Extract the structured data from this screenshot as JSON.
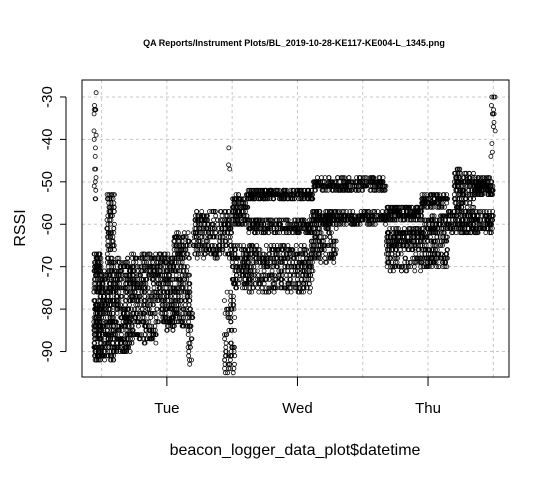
{
  "chart_data": {
    "type": "scatter",
    "title": "QA Reports/Instrument Plots/BL_2019-10-28-KE117-KE004-L_1345.png",
    "xlabel": "beacon_logger_data_plot$datetime",
    "ylabel": "RSSI",
    "x_ticks": [
      "Tue",
      "Wed",
      "Thu"
    ],
    "y_ticks": [
      -30,
      -40,
      -50,
      -60,
      -70,
      -80,
      -90
    ],
    "ylim": [
      -96,
      -26
    ],
    "grid": true,
    "marker": "open-circle",
    "note_x_units": "days since Monday 00:00 (Tue=1, Wed=2, Thu=3)",
    "xlim": [
      0.35,
      3.62
    ],
    "clusters": [
      {
        "x": [
          0.44,
          0.5
        ],
        "y": [
          -92,
          -67
        ],
        "n": 260
      },
      {
        "x": [
          0.44,
          0.46
        ],
        "y": [
          -55,
          -29
        ],
        "n": 20
      },
      {
        "x": [
          0.5,
          0.6
        ],
        "y": [
          -92,
          -70
        ],
        "n": 240
      },
      {
        "x": [
          0.54,
          0.6
        ],
        "y": [
          -70,
          -52
        ],
        "n": 90
      },
      {
        "x": [
          0.6,
          0.72
        ],
        "y": [
          -90,
          -68
        ],
        "n": 260
      },
      {
        "x": [
          0.72,
          0.92
        ],
        "y": [
          -88,
          -67
        ],
        "n": 320
      },
      {
        "x": [
          0.92,
          1.05
        ],
        "y": [
          -85,
          -67
        ],
        "n": 220
      },
      {
        "x": [
          1.05,
          1.18
        ],
        "y": [
          -84,
          -62
        ],
        "n": 220
      },
      {
        "x": [
          1.16,
          1.2
        ],
        "y": [
          -93,
          -80
        ],
        "n": 30
      },
      {
        "x": [
          1.2,
          1.5
        ],
        "y": [
          -68,
          -57
        ],
        "n": 260
      },
      {
        "x": [
          1.44,
          1.52
        ],
        "y": [
          -95,
          -76
        ],
        "n": 70
      },
      {
        "x": [
          1.5,
          1.62
        ],
        "y": [
          -75,
          -65
        ],
        "n": 120
      },
      {
        "x": [
          1.5,
          1.62
        ],
        "y": [
          -60,
          -53
        ],
        "n": 110
      },
      {
        "x": [
          1.46,
          1.5
        ],
        "y": [
          -47,
          -41
        ],
        "n": 3
      },
      {
        "x": [
          1.62,
          2.12
        ],
        "y": [
          -76,
          -65
        ],
        "n": 420
      },
      {
        "x": [
          1.62,
          2.12
        ],
        "y": [
          -54,
          -52
        ],
        "n": 260
      },
      {
        "x": [
          1.62,
          2.12
        ],
        "y": [
          -62,
          -59
        ],
        "n": 220
      },
      {
        "x": [
          2.1,
          2.3
        ],
        "y": [
          -69,
          -57
        ],
        "n": 160
      },
      {
        "x": [
          2.12,
          2.68
        ],
        "y": [
          -52,
          -49
        ],
        "n": 260
      },
      {
        "x": [
          2.12,
          2.68
        ],
        "y": [
          -60,
          -57
        ],
        "n": 260
      },
      {
        "x": [
          2.68,
          2.95
        ],
        "y": [
          -66,
          -61
        ],
        "n": 190
      },
      {
        "x": [
          2.68,
          2.95
        ],
        "y": [
          -59,
          -56
        ],
        "n": 190
      },
      {
        "x": [
          2.68,
          2.95
        ],
        "y": [
          -71,
          -67
        ],
        "n": 70
      },
      {
        "x": [
          2.95,
          3.15
        ],
        "y": [
          -70,
          -58
        ],
        "n": 230
      },
      {
        "x": [
          2.95,
          3.15
        ],
        "y": [
          -56,
          -53
        ],
        "n": 100
      },
      {
        "x": [
          3.15,
          3.5
        ],
        "y": [
          -62,
          -57
        ],
        "n": 230
      },
      {
        "x": [
          3.2,
          3.35
        ],
        "y": [
          -58,
          -47
        ],
        "n": 150
      },
      {
        "x": [
          3.35,
          3.5
        ],
        "y": [
          -53,
          -49
        ],
        "n": 140
      },
      {
        "x": [
          3.48,
          3.52
        ],
        "y": [
          -44,
          -29
        ],
        "n": 14
      }
    ]
  }
}
